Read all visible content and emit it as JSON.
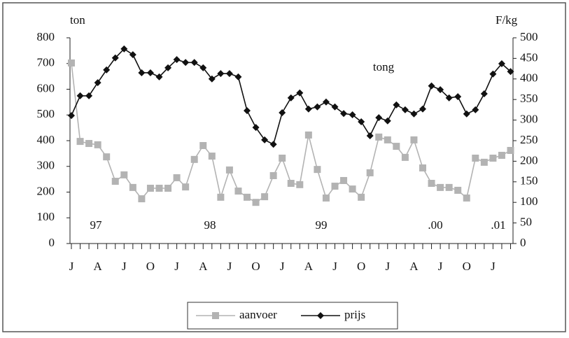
{
  "chart_data": {
    "type": "line",
    "y_label": "ton",
    "y2_label": "F/kg",
    "annotations": [
      "tong",
      "97",
      "98",
      "99",
      ".00",
      ".01"
    ],
    "categories": [
      "J",
      null,
      null,
      "A",
      null,
      null,
      "J",
      null,
      null,
      "O",
      null,
      null,
      "J",
      null,
      null,
      "A",
      null,
      null,
      "J",
      null,
      null,
      "O",
      null,
      null,
      "J",
      null,
      null,
      "A",
      null,
      null,
      "J",
      null,
      null,
      "O",
      null,
      null,
      "J",
      null,
      null,
      "A",
      null,
      null,
      "J",
      null,
      null,
      "O",
      null,
      null,
      "J",
      null,
      null
    ],
    "series": [
      {
        "name": "aanvoer",
        "color": "#b3b3b3",
        "marker": "square",
        "values": [
          702,
          397,
          389,
          384,
          337,
          242,
          267,
          218,
          174,
          215,
          215,
          215,
          256,
          220,
          327,
          381,
          340,
          180,
          286,
          204,
          180,
          160,
          182,
          264,
          332,
          234,
          229,
          422,
          288,
          177,
          223,
          245,
          212,
          180,
          275,
          414,
          403,
          378,
          335,
          403,
          294,
          234,
          218,
          218,
          207,
          177,
          332,
          316,
          332,
          343,
          362
        ]
      },
      {
        "name": "prijs",
        "color": "#111111",
        "marker": "diamond",
        "axis": "y2",
        "values": [
          311,
          359,
          359,
          391,
          422,
          451,
          473,
          459,
          415,
          415,
          405,
          427,
          447,
          440,
          440,
          427,
          400,
          413,
          413,
          405,
          323,
          282,
          252,
          241,
          318,
          354,
          366,
          327,
          332,
          344,
          332,
          316,
          313,
          296,
          262,
          306,
          298,
          337,
          325,
          315,
          327,
          383,
          374,
          354,
          357,
          315,
          325,
          364,
          412,
          437,
          418
        ]
      }
    ],
    "ylim": [
      0,
      800
    ],
    "yticks": [
      0,
      100,
      200,
      300,
      400,
      500,
      600,
      700,
      800
    ],
    "y2lim": [
      0,
      500
    ],
    "y2ticks": [
      0,
      50,
      100,
      150,
      200,
      250,
      300,
      350,
      400,
      450,
      500
    ],
    "legend": "bottom"
  }
}
